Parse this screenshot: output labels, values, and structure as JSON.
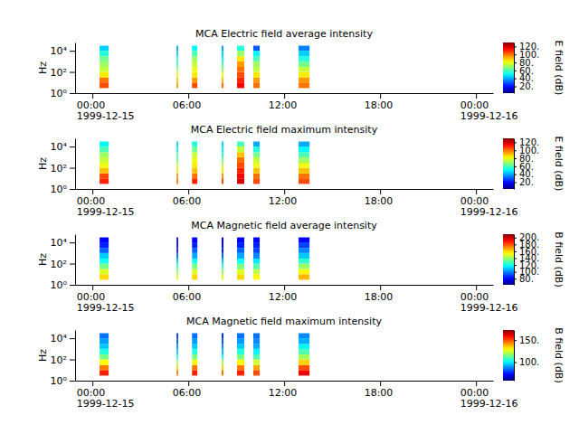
{
  "chart_data": [
    {
      "type": "heatmap",
      "title": "MCA  Electric field average intensity",
      "y_label": "Hz",
      "colorbar_label": "E field (dB)",
      "log": "y",
      "xlim": [
        "1999-12-14T22:55",
        "1999-12-16T01:04"
      ],
      "xticks": [
        {
          "value": "1999-12-15T00:00",
          "label": "00:00\n1999-12-15"
        },
        {
          "value": "1999-12-15T06:00",
          "label": "06:00"
        },
        {
          "value": "1999-12-15T12:00",
          "label": "12:00"
        },
        {
          "value": "1999-12-15T18:00",
          "label": "18:00"
        },
        {
          "value": "1999-12-16T00:00",
          "label": "00:00\n1999-12-16"
        }
      ],
      "ylim": [
        1,
        60000
      ],
      "yticks": [
        {
          "value": 1,
          "label": "10⁰"
        },
        {
          "value": 100,
          "label": "10²"
        },
        {
          "value": 10000,
          "label": "10⁴"
        }
      ],
      "x_start": [
        "1999-12-15T00:27",
        "1999-12-15T05:16",
        "1999-12-15T06:14",
        "1999-12-15T08:05",
        "1999-12-15T09:03",
        "1999-12-15T10:04",
        "1999-12-15T12:54"
      ],
      "x_end": [
        "1999-12-15T01:01",
        "1999-12-15T05:22",
        "1999-12-15T06:34",
        "1999-12-15T08:12",
        "1999-12-15T09:30",
        "1999-12-15T10:28",
        "1999-12-15T13:35"
      ],
      "y_edges": [
        3,
        10,
        30,
        100,
        300,
        1000,
        3000,
        10000,
        30000
      ],
      "values": [
        [
          105,
          100,
          85,
          75,
          70,
          65,
          55,
          45
        ],
        [
          95,
          90,
          80,
          70,
          60,
          55,
          45,
          40
        ],
        [
          105,
          95,
          85,
          80,
          75,
          70,
          60,
          50
        ],
        [
          100,
          90,
          80,
          70,
          60,
          50,
          45,
          40
        ],
        [
          115,
          110,
          105,
          100,
          95,
          85,
          70,
          55
        ],
        [
          100,
          95,
          85,
          75,
          70,
          60,
          50,
          30
        ],
        [
          100,
          95,
          85,
          75,
          65,
          55,
          45,
          35
        ]
      ],
      "colorbar_range": [
        3,
        130
      ],
      "colorbar_ticks": [
        {
          "value": 20,
          "label": "20."
        },
        {
          "value": 40,
          "label": "40."
        },
        {
          "value": 60,
          "label": "60."
        },
        {
          "value": 80,
          "label": "80."
        },
        {
          "value": 100,
          "label": "100."
        },
        {
          "value": 120,
          "label": "120."
        }
      ]
    },
    {
      "type": "heatmap",
      "title": "MCA  Electric field maximum intensity",
      "y_label": "Hz",
      "colorbar_label": "E field (dB)",
      "log": "y",
      "xlim": [
        "1999-12-14T22:55",
        "1999-12-16T01:04"
      ],
      "xticks": [
        {
          "value": "1999-12-15T00:00",
          "label": "00:00\n1999-12-15"
        },
        {
          "value": "1999-12-15T06:00",
          "label": "06:00"
        },
        {
          "value": "1999-12-15T12:00",
          "label": "12:00"
        },
        {
          "value": "1999-12-15T18:00",
          "label": "18:00"
        },
        {
          "value": "1999-12-16T00:00",
          "label": "00:00\n1999-12-16"
        }
      ],
      "ylim": [
        1,
        60000
      ],
      "yticks": [
        {
          "value": 1,
          "label": "10⁰"
        },
        {
          "value": 100,
          "label": "10²"
        },
        {
          "value": 10000,
          "label": "10⁴"
        }
      ],
      "x_start": [
        "1999-12-15T00:27",
        "1999-12-15T05:16",
        "1999-12-15T06:14",
        "1999-12-15T08:05",
        "1999-12-15T09:03",
        "1999-12-15T10:04",
        "1999-12-15T12:54"
      ],
      "x_end": [
        "1999-12-15T01:01",
        "1999-12-15T05:22",
        "1999-12-15T06:34",
        "1999-12-15T08:12",
        "1999-12-15T09:30",
        "1999-12-15T10:28",
        "1999-12-15T13:35"
      ],
      "y_edges": [
        3,
        10,
        30,
        100,
        300,
        1000,
        3000,
        10000,
        30000
      ],
      "values": [
        [
          110,
          105,
          90,
          80,
          75,
          70,
          60,
          50
        ],
        [
          100,
          95,
          85,
          75,
          65,
          60,
          50,
          45
        ],
        [
          110,
          100,
          90,
          85,
          80,
          75,
          65,
          55
        ],
        [
          105,
          95,
          85,
          75,
          65,
          55,
          50,
          45
        ],
        [
          120,
          115,
          110,
          105,
          100,
          90,
          75,
          60
        ],
        [
          105,
          100,
          90,
          80,
          75,
          65,
          55,
          40
        ],
        [
          105,
          100,
          90,
          80,
          70,
          60,
          50,
          40
        ]
      ],
      "colorbar_range": [
        3,
        130
      ],
      "colorbar_ticks": [
        {
          "value": 20,
          "label": "20."
        },
        {
          "value": 40,
          "label": "40."
        },
        {
          "value": 60,
          "label": "60."
        },
        {
          "value": 80,
          "label": "80."
        },
        {
          "value": 100,
          "label": "100."
        },
        {
          "value": 120,
          "label": "120."
        }
      ]
    },
    {
      "type": "heatmap",
      "title": "MCA  Magnetic field average intensity",
      "y_label": "Hz",
      "colorbar_label": "B field (dB)",
      "log": "y",
      "xlim": [
        "1999-12-14T22:55",
        "1999-12-16T01:04"
      ],
      "xticks": [
        {
          "value": "1999-12-15T00:00",
          "label": "00:00\n1999-12-15"
        },
        {
          "value": "1999-12-15T06:00",
          "label": "06:00"
        },
        {
          "value": "1999-12-15T12:00",
          "label": "12:00"
        },
        {
          "value": "1999-12-15T18:00",
          "label": "18:00"
        },
        {
          "value": "1999-12-16T00:00",
          "label": "00:00\n1999-12-16"
        }
      ],
      "ylim": [
        1,
        60000
      ],
      "yticks": [
        {
          "value": 1,
          "label": "10⁰"
        },
        {
          "value": 100,
          "label": "10²"
        },
        {
          "value": 10000,
          "label": "10⁴"
        }
      ],
      "x_start": [
        "1999-12-15T00:27",
        "1999-12-15T05:16",
        "1999-12-15T06:14",
        "1999-12-15T08:05",
        "1999-12-15T09:03",
        "1999-12-15T10:04",
        "1999-12-15T12:54"
      ],
      "x_end": [
        "1999-12-15T01:01",
        "1999-12-15T05:22",
        "1999-12-15T06:34",
        "1999-12-15T08:12",
        "1999-12-15T09:30",
        "1999-12-15T10:28",
        "1999-12-15T13:35"
      ],
      "y_edges": [
        3,
        10,
        30,
        100,
        300,
        1000,
        3000,
        10000,
        30000
      ],
      "values": [
        [
          160,
          150,
          135,
          120,
          110,
          95,
          85,
          80
        ],
        [
          150,
          140,
          125,
          110,
          95,
          85,
          80,
          75
        ],
        [
          160,
          150,
          135,
          120,
          105,
          95,
          85,
          80
        ],
        [
          150,
          140,
          125,
          110,
          95,
          85,
          80,
          75
        ],
        [
          160,
          150,
          135,
          120,
          105,
          95,
          85,
          80
        ],
        [
          155,
          145,
          130,
          115,
          100,
          90,
          85,
          80
        ],
        [
          165,
          155,
          140,
          125,
          110,
          100,
          90,
          80
        ]
      ],
      "colorbar_range": [
        62,
        210
      ],
      "colorbar_ticks": [
        {
          "value": 80,
          "label": "80."
        },
        {
          "value": 100,
          "label": "100."
        },
        {
          "value": 120,
          "label": "120."
        },
        {
          "value": 140,
          "label": "140."
        },
        {
          "value": 160,
          "label": "160."
        },
        {
          "value": 180,
          "label": "180."
        },
        {
          "value": 200,
          "label": "200."
        }
      ]
    },
    {
      "type": "heatmap",
      "title": "MCA  Magnetic field maximum intensity",
      "y_label": "Hz",
      "colorbar_label": "B field (dB)",
      "log": "y",
      "xlim": [
        "1999-12-14T22:55",
        "1999-12-16T01:04"
      ],
      "xticks": [
        {
          "value": "1999-12-15T00:00",
          "label": "00:00\n1999-12-15"
        },
        {
          "value": "1999-12-15T06:00",
          "label": "06:00"
        },
        {
          "value": "1999-12-15T12:00",
          "label": "12:00"
        },
        {
          "value": "1999-12-15T18:00",
          "label": "18:00"
        },
        {
          "value": "1999-12-16T00:00",
          "label": "00:00\n1999-12-16"
        }
      ],
      "ylim": [
        1,
        60000
      ],
      "yticks": [
        {
          "value": 1,
          "label": "10⁰"
        },
        {
          "value": 100,
          "label": "10²"
        },
        {
          "value": 10000,
          "label": "10⁴"
        }
      ],
      "x_start": [
        "1999-12-15T00:27",
        "1999-12-15T05:16",
        "1999-12-15T06:14",
        "1999-12-15T08:05",
        "1999-12-15T09:03",
        "1999-12-15T10:04",
        "1999-12-15T12:54"
      ],
      "x_end": [
        "1999-12-15T01:01",
        "1999-12-15T05:22",
        "1999-12-15T06:34",
        "1999-12-15T08:12",
        "1999-12-15T09:30",
        "1999-12-15T10:28",
        "1999-12-15T13:35"
      ],
      "y_edges": [
        3,
        10,
        30,
        100,
        300,
        1000,
        3000,
        10000,
        30000
      ],
      "values": [
        [
          155,
          145,
          130,
          115,
          105,
          95,
          90,
          85
        ],
        [
          145,
          135,
          120,
          105,
          95,
          88,
          82,
          78
        ],
        [
          155,
          145,
          130,
          115,
          105,
          95,
          90,
          85
        ],
        [
          145,
          135,
          120,
          105,
          95,
          88,
          82,
          78
        ],
        [
          155,
          145,
          130,
          115,
          105,
          95,
          90,
          85
        ],
        [
          150,
          140,
          125,
          110,
          100,
          92,
          88,
          85
        ],
        [
          160,
          150,
          135,
          120,
          110,
          100,
          92,
          88
        ]
      ],
      "colorbar_range": [
        58,
        173
      ],
      "colorbar_ticks": [
        {
          "value": 100,
          "label": "100."
        },
        {
          "value": 150,
          "label": "150."
        }
      ]
    }
  ]
}
